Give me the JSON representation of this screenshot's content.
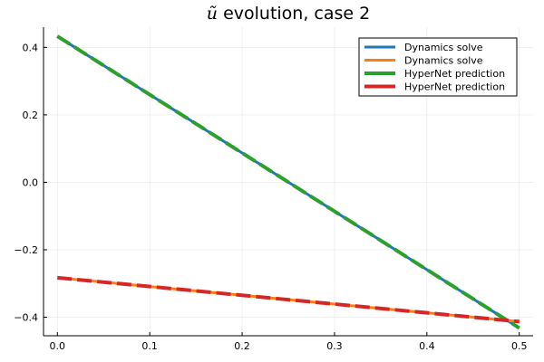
{
  "chart_data": {
    "type": "line",
    "title_symbol": "ũ",
    "title": "evolution, case 2",
    "xlabel": "",
    "ylabel": "",
    "xlim": [
      -0.015,
      0.515
    ],
    "ylim": [
      -0.455,
      0.46
    ],
    "x_ticks": [
      0.0,
      0.1,
      0.2,
      0.3,
      0.4,
      0.5
    ],
    "x_tick_labels": [
      "0.0",
      "0.1",
      "0.2",
      "0.3",
      "0.4",
      "0.5"
    ],
    "y_ticks": [
      -0.4,
      -0.2,
      0.0,
      0.2,
      0.4
    ],
    "y_tick_labels": [
      "−0.4",
      "−0.2",
      "0.0",
      "0.2",
      "0.4"
    ],
    "grid": true,
    "legend_position": "top-right",
    "series": [
      {
        "name": "Dynamics solve",
        "color": "#1f77b4",
        "style": "solid",
        "x": [
          0.0,
          0.5
        ],
        "y": [
          0.433,
          -0.432
        ]
      },
      {
        "name": "Dynamics solve",
        "color": "#ff7f0e",
        "style": "solid",
        "x": [
          0.0,
          0.5
        ],
        "y": [
          -0.283,
          -0.413
        ]
      },
      {
        "name": "HyperNet prediction",
        "color": "#2ca02c",
        "style": "dashed",
        "x": [
          0.0,
          0.5
        ],
        "y": [
          0.433,
          -0.432
        ]
      },
      {
        "name": "HyperNet prediction",
        "color": "#d62728",
        "style": "dashed",
        "x": [
          0.0,
          0.5
        ],
        "y": [
          -0.283,
          -0.413
        ]
      }
    ]
  }
}
